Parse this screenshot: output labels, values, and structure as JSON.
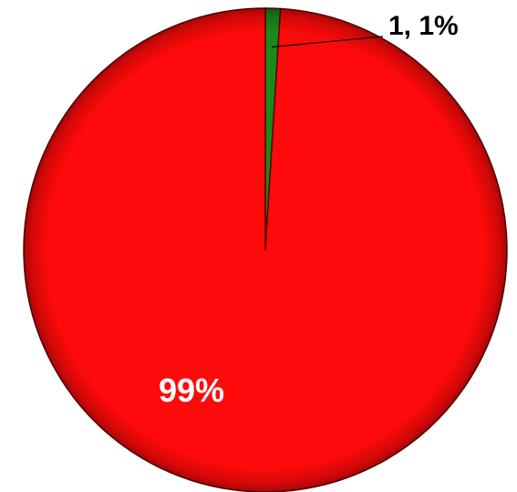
{
  "chart_data": {
    "type": "pie",
    "title": "",
    "slices": [
      {
        "label": "1, 1%",
        "value": 1,
        "percent": 1,
        "color": "#1a8a1a"
      },
      {
        "label": "99%",
        "value": 99,
        "percent": 99,
        "color": "#ff0a0a"
      }
    ],
    "start_angle_deg": 0,
    "direction": "clockwise",
    "legend": "none"
  }
}
